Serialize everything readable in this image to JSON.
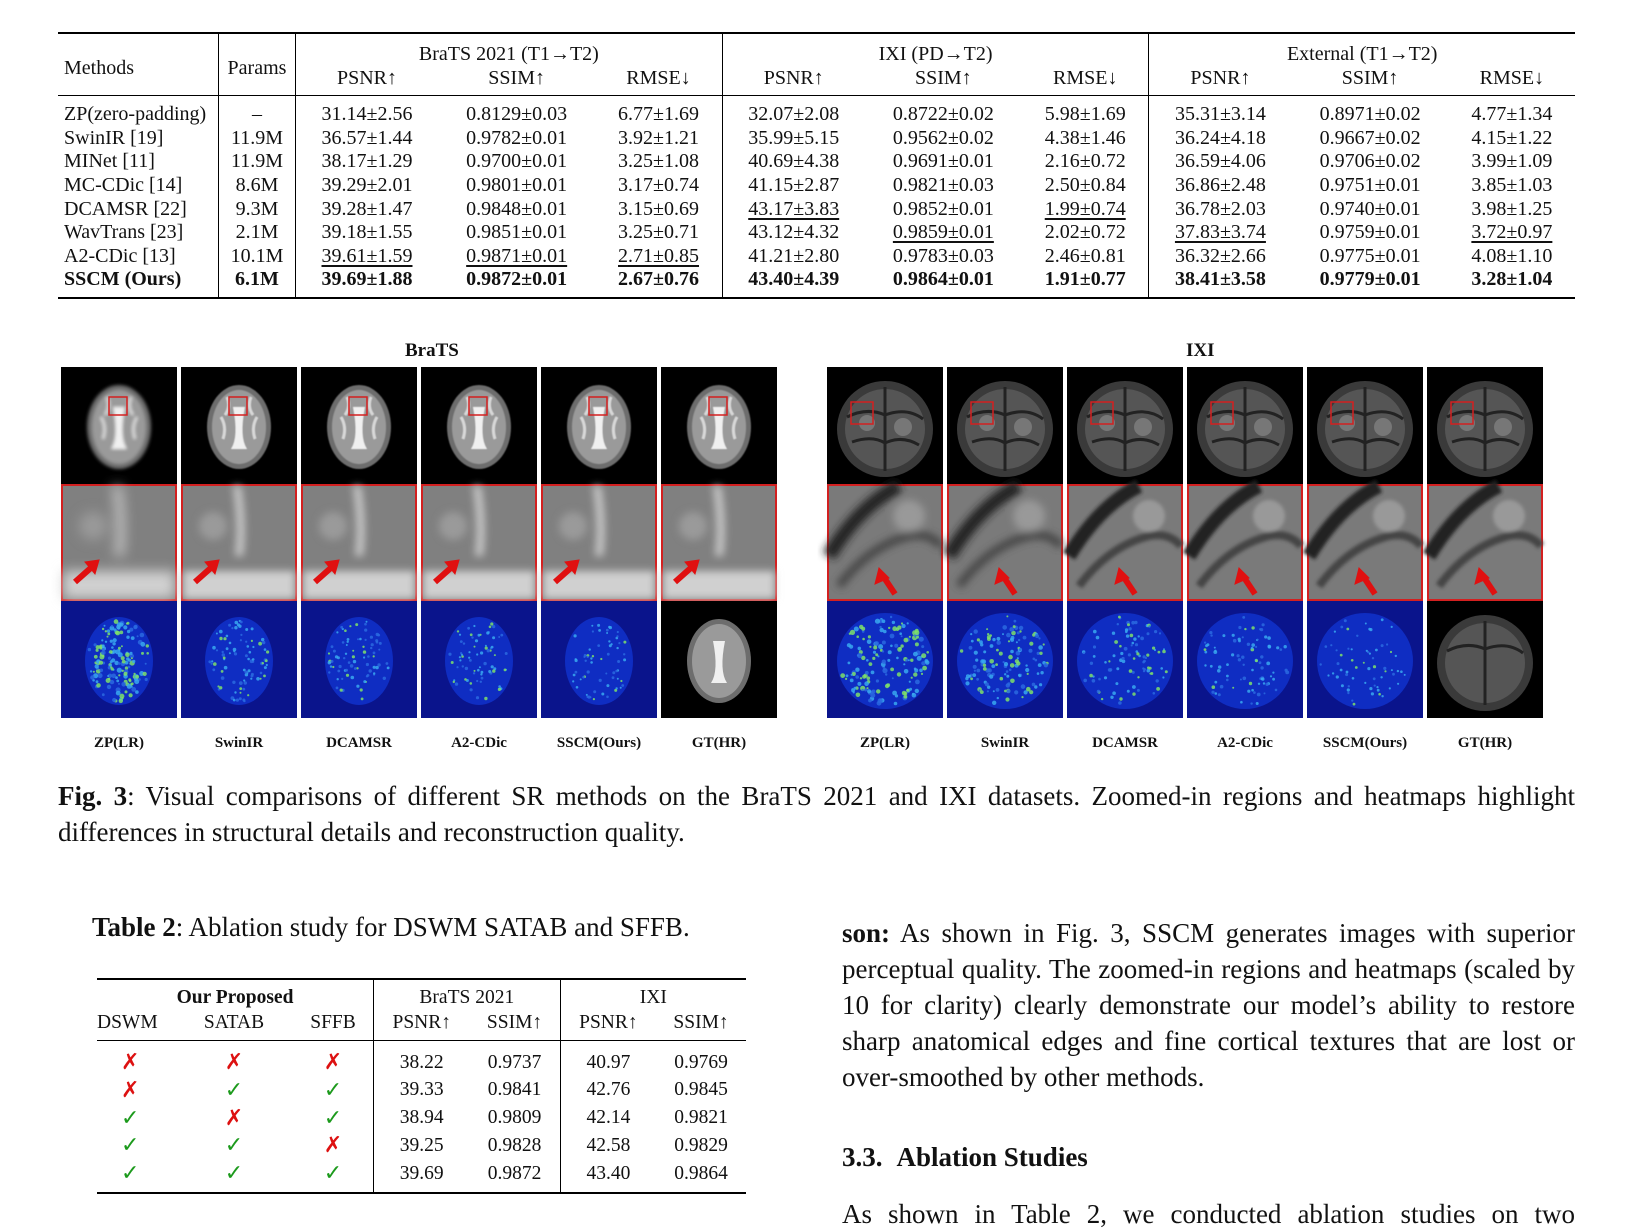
{
  "table1": {
    "header": {
      "methods": "Methods",
      "params": "Params",
      "groups": [
        "BraTS 2021 (T1→T2)",
        "IXI (PD→T2)",
        "External (T1→T2)"
      ],
      "metrics": [
        "PSNR↑",
        "SSIM↑",
        "RMSE↓"
      ]
    },
    "rows": [
      {
        "method": "ZP(zero-padding)",
        "params": "–",
        "values": [
          "31.14±2.56",
          "0.8129±0.03",
          "6.77±1.69",
          "32.07±2.08",
          "0.8722±0.02",
          "5.98±1.69",
          "35.31±3.14",
          "0.8971±0.02",
          "4.77±1.34"
        ],
        "underline": [],
        "bold": false
      },
      {
        "method": "SwinIR [19]",
        "params": "11.9M",
        "values": [
          "36.57±1.44",
          "0.9782±0.01",
          "3.92±1.21",
          "35.99±5.15",
          "0.9562±0.02",
          "4.38±1.46",
          "36.24±4.18",
          "0.9667±0.02",
          "4.15±1.22"
        ],
        "underline": [],
        "bold": false
      },
      {
        "method": "MINet [11]",
        "params": "11.9M",
        "values": [
          "38.17±1.29",
          "0.9700±0.01",
          "3.25±1.08",
          "40.69±4.38",
          "0.9691±0.01",
          "2.16±0.72",
          "36.59±4.06",
          "0.9706±0.02",
          "3.99±1.09"
        ],
        "underline": [],
        "bold": false
      },
      {
        "method": "MC-CDic [14]",
        "params": "8.6M",
        "values": [
          "39.29±2.01",
          "0.9801±0.01",
          "3.17±0.74",
          "41.15±2.87",
          "0.9821±0.03",
          "2.50±0.84",
          "36.86±2.48",
          "0.9751±0.01",
          "3.85±1.03"
        ],
        "underline": [],
        "bold": false
      },
      {
        "method": "DCAMSR [22]",
        "params": "9.3M",
        "values": [
          "39.28±1.47",
          "0.9848±0.01",
          "3.15±0.69",
          "43.17±3.83",
          "0.9852±0.01",
          "1.99±0.74",
          "36.78±2.03",
          "0.9740±0.01",
          "3.98±1.25"
        ],
        "underline": [
          3,
          5
        ],
        "bold": false
      },
      {
        "method": "WavTrans [23]",
        "params": "2.1M",
        "values": [
          "39.18±1.55",
          "0.9851±0.01",
          "3.25±0.71",
          "43.12±4.32",
          "0.9859±0.01",
          "2.02±0.72",
          "37.83±3.74",
          "0.9759±0.01",
          "3.72±0.97"
        ],
        "underline": [
          4,
          6,
          8
        ],
        "bold": false
      },
      {
        "method": "A2-CDic [13]",
        "params": "10.1M",
        "values": [
          "39.61±1.59",
          "0.9871±0.01",
          "2.71±0.85",
          "41.21±2.80",
          "0.9783±0.03",
          "2.46±0.81",
          "36.32±2.66",
          "0.9775±0.01",
          "4.08±1.10"
        ],
        "underline": [
          0,
          1,
          2
        ],
        "bold": false
      },
      {
        "method": "SSCM (Ours)",
        "params": "6.1M",
        "values": [
          "39.69±1.88",
          "0.9872±0.01",
          "2.67±0.76",
          "43.40±4.39",
          "0.9864±0.01",
          "1.91±0.77",
          "38.41±3.58",
          "0.9779±0.01",
          "3.28±1.04"
        ],
        "underline": [],
        "bold": true
      }
    ]
  },
  "figure": {
    "titles": {
      "left": "BraTS",
      "right": "IXI"
    },
    "labels": [
      "ZP(LR)",
      "SwinIR",
      "DCAMSR",
      "A2-CDic",
      "SSCM(Ours)",
      "GT(HR)"
    ],
    "caption_label": "Fig. 3",
    "caption_text": ": Visual comparisons of different SR methods on the BraTS 2021 and IXI datasets. Zoomed-in regions and heatmaps highlight differences in structural details and reconstruction quality.",
    "colors": {
      "box": "#d32020",
      "heat_bg": "#0a148c"
    }
  },
  "table2": {
    "caption_label": "Table 2",
    "caption_text": ": Ablation study for DSWM SATAB and SFFB.",
    "header": {
      "group": "Our Proposed",
      "components": [
        "DSWM",
        "SATAB",
        "SFFB"
      ],
      "datasets": [
        "BraTS 2021",
        "IXI"
      ],
      "metrics": [
        "PSNR↑",
        "SSIM↑"
      ]
    },
    "rows": [
      {
        "marks": [
          "✗",
          "✗",
          "✗"
        ],
        "values": [
          "38.22",
          "0.9737",
          "40.97",
          "0.9769"
        ]
      },
      {
        "marks": [
          "✗",
          "✓",
          "✓"
        ],
        "values": [
          "39.33",
          "0.9841",
          "42.76",
          "0.9845"
        ]
      },
      {
        "marks": [
          "✓",
          "✗",
          "✓"
        ],
        "values": [
          "38.94",
          "0.9809",
          "42.14",
          "0.9821"
        ]
      },
      {
        "marks": [
          "✓",
          "✓",
          "✗"
        ],
        "values": [
          "39.25",
          "0.9828",
          "42.58",
          "0.9829"
        ]
      },
      {
        "marks": [
          "✓",
          "✓",
          "✓"
        ],
        "values": [
          "39.69",
          "0.9872",
          "43.40",
          "0.9864"
        ]
      }
    ]
  },
  "text": {
    "para_lead": "son:",
    "para_body": " As shown in Fig. 3, SSCM generates images with superior perceptual quality. The zoomed-in regions and heatmaps (scaled by 10 for clarity) clearly demonstrate our model’s ability to restore sharp anatomical edges and fine cortical textures that are lost or over-smoothed by other methods.",
    "section_num": "3.3.",
    "section_title": "Ablation Studies",
    "last_line": "As shown in Table 2, we conducted ablation studies on two"
  }
}
